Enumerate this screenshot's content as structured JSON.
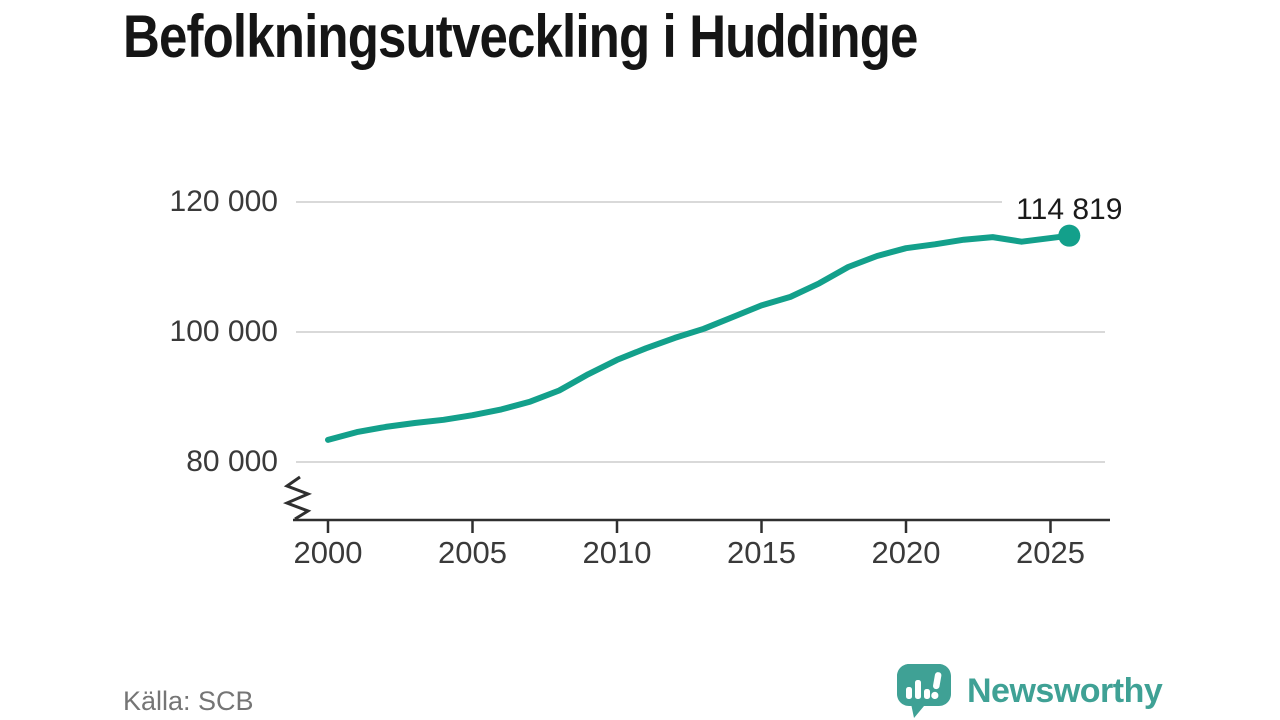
{
  "title": "Befolkningsutveckling i Huddinge",
  "source": {
    "label": "Källa: SCB"
  },
  "branding": {
    "name": "Newsworthy",
    "logo_icon": "bar-chart-speech-bubble-icon",
    "color": "#3fa195"
  },
  "chart_data": {
    "type": "line",
    "title": "Befolkningsutveckling i Huddinge",
    "xlabel": "",
    "ylabel": "",
    "x": [
      2000,
      2001,
      2002,
      2003,
      2004,
      2005,
      2006,
      2007,
      2008,
      2009,
      2010,
      2011,
      2012,
      2013,
      2014,
      2015,
      2016,
      2017,
      2018,
      2019,
      2020,
      2021,
      2022,
      2023,
      2024,
      2025
    ],
    "values": [
      83400,
      84600,
      85400,
      86000,
      86500,
      87200,
      88100,
      89300,
      91000,
      93500,
      95700,
      97500,
      99100,
      100500,
      102300,
      104100,
      105400,
      107500,
      110000,
      111700,
      112900,
      113500,
      114200,
      114600,
      113900,
      114819
    ],
    "end_value": 114819,
    "end_label": "114 819",
    "x_ticks": [
      "2000",
      "2005",
      "2010",
      "2015",
      "2020",
      "2025"
    ],
    "y_ticks": [
      {
        "value": 120000,
        "label": "120 000"
      },
      {
        "value": 100000,
        "label": "100 000"
      },
      {
        "value": 80000,
        "label": "80 000"
      }
    ],
    "ylim": [
      80000,
      123000
    ],
    "axis_break": true,
    "grid": "on",
    "legend": "none",
    "line_color": "#13a08b",
    "grid_color": "#d9d9d9",
    "axis_color": "#2f2f2f"
  }
}
